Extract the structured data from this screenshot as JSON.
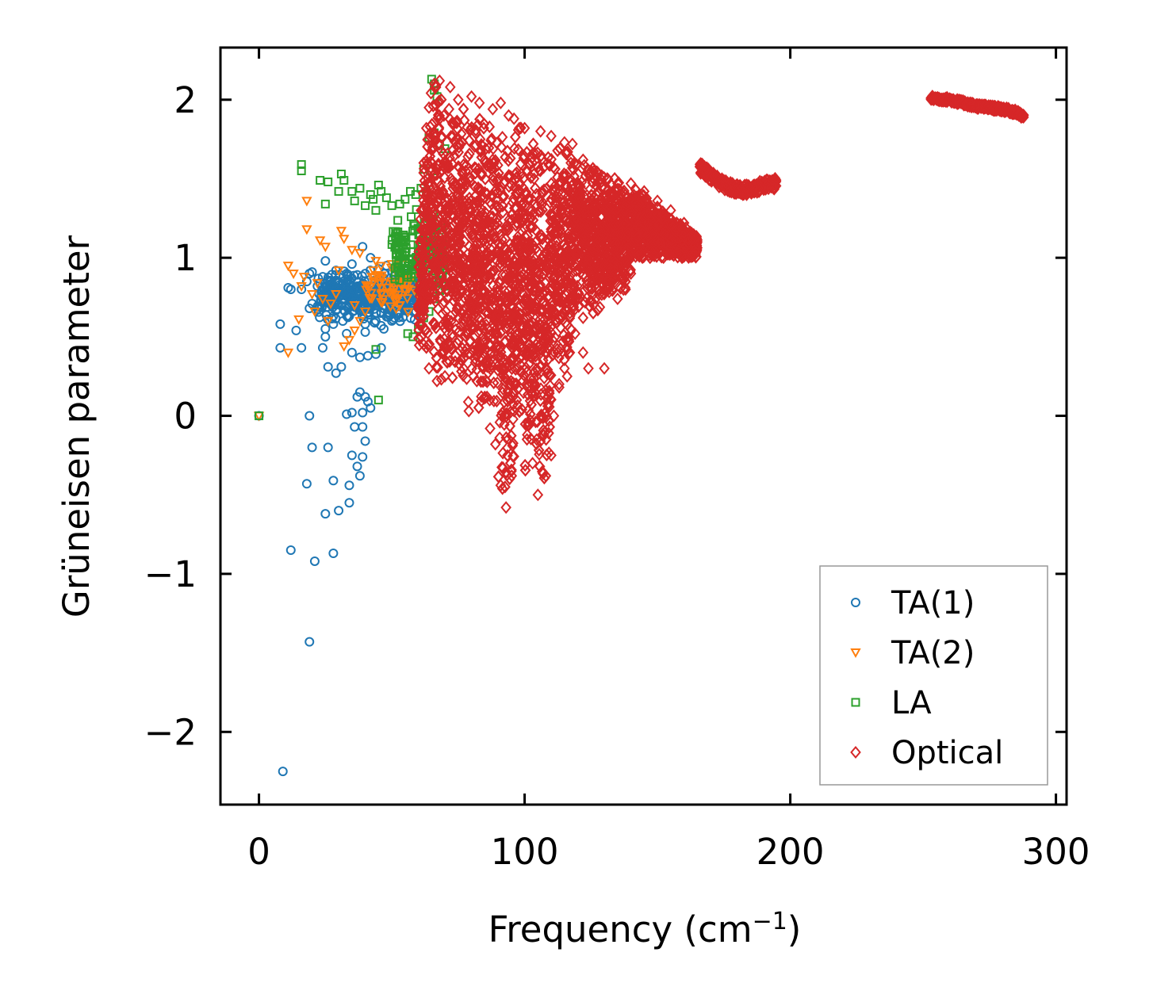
{
  "chart_data": {
    "type": "scatter",
    "title": "",
    "xlabel": "Frequency (cm",
    "xlabel_sup": "−1",
    "xlabel_close": ")",
    "ylabel": "Grüneisen parameter",
    "xlim": [
      -14.5,
      304
    ],
    "ylim": [
      -2.46,
      2.33
    ],
    "xticks": [
      0,
      100,
      200,
      300
    ],
    "xtick_labels": [
      "0",
      "100",
      "200",
      "300"
    ],
    "yticks": [
      -2,
      -1,
      0,
      1,
      2
    ],
    "ytick_labels": [
      "−2",
      "−1",
      "0",
      "1",
      "2"
    ],
    "grid": false,
    "legend_position": "lower-right",
    "series": [
      {
        "name": "TA(1)",
        "marker": "circle",
        "color": "#1f77b4",
        "points": [
          [
            0,
            0
          ],
          [
            9,
            -2.25
          ],
          [
            19,
            -1.43
          ],
          [
            21,
            -0.92
          ],
          [
            12,
            -0.85
          ],
          [
            28,
            -0.87
          ],
          [
            25,
            -0.62
          ],
          [
            30,
            -0.6
          ],
          [
            18,
            -0.43
          ],
          [
            28,
            -0.41
          ],
          [
            34,
            -0.55
          ],
          [
            20,
            -0.2
          ],
          [
            26,
            -0.2
          ],
          [
            34,
            -0.44
          ],
          [
            38,
            -0.38
          ],
          [
            35,
            -0.25
          ],
          [
            37,
            -0.32
          ],
          [
            39,
            -0.26
          ],
          [
            19,
            0.0
          ],
          [
            33,
            0.01
          ],
          [
            36,
            -0.07
          ],
          [
            39,
            -0.07
          ],
          [
            40,
            -0.16
          ],
          [
            35,
            0.02
          ],
          [
            39,
            0.02
          ],
          [
            37,
            0.12
          ],
          [
            40,
            0.12
          ],
          [
            41,
            0.09
          ],
          [
            38,
            0.15
          ],
          [
            42,
            0.05
          ],
          [
            26,
            0.31
          ],
          [
            29,
            0.27
          ],
          [
            31,
            0.31
          ],
          [
            35,
            0.4
          ],
          [
            38,
            0.37
          ],
          [
            41,
            0.38
          ],
          [
            44,
            0.39
          ],
          [
            46,
            0.43
          ],
          [
            8,
            0.43
          ],
          [
            16,
            0.43
          ],
          [
            24,
            0.43
          ],
          [
            25,
            0.5
          ],
          [
            33,
            0.52
          ],
          [
            40,
            0.53
          ],
          [
            8,
            0.58
          ],
          [
            14,
            0.54
          ],
          [
            25,
            0.55
          ],
          [
            28,
            0.58
          ],
          [
            19,
            0.68
          ],
          [
            20,
            0.71
          ],
          [
            28,
            0.63
          ],
          [
            34,
            0.63
          ],
          [
            40,
            0.58
          ],
          [
            46,
            0.57
          ],
          [
            11,
            0.81
          ],
          [
            12,
            0.8
          ],
          [
            16,
            0.8
          ],
          [
            18,
            0.85
          ],
          [
            19,
            0.9
          ],
          [
            20,
            0.91
          ],
          [
            24,
            0.88
          ],
          [
            25,
            0.98
          ],
          [
            30,
            0.84
          ],
          [
            35,
            0.96
          ],
          [
            39,
            1.07
          ],
          [
            42,
            1.0
          ],
          [
            45,
            0.93
          ],
          [
            48,
            0.85
          ],
          [
            53,
            0.88
          ],
          [
            56,
            0.9
          ],
          [
            58,
            0.8
          ],
          [
            60,
            0.75
          ],
          [
            55,
            0.7
          ],
          [
            50,
            0.6
          ],
          [
            47,
            0.55
          ],
          [
            52,
            0.65
          ],
          [
            44,
            0.6
          ],
          [
            22,
            0.82
          ],
          [
            27,
            0.85
          ],
          [
            31,
            0.78
          ],
          [
            36,
            0.72
          ],
          [
            41,
            0.68
          ],
          [
            44,
            0.75
          ],
          [
            37,
            0.82
          ],
          [
            33,
            0.9
          ],
          [
            29,
            0.92
          ],
          [
            49,
            0.72
          ],
          [
            54,
            0.78
          ],
          [
            46,
            0.65
          ],
          [
            42,
            0.82
          ],
          [
            38,
            0.78
          ],
          [
            34,
            0.86
          ],
          [
            30,
            0.8
          ],
          [
            40,
            0.9
          ],
          [
            48,
            0.95
          ]
        ],
        "cloud": {
          "x_range": [
            22,
            62
          ],
          "y_range": [
            0.56,
            0.96
          ],
          "count": 420
        }
      },
      {
        "name": "TA(2)",
        "marker": "triangle-down",
        "color": "#ff7f0e",
        "points": [
          [
            0,
            0
          ],
          [
            11,
            0.95
          ],
          [
            18,
            1.36
          ],
          [
            18,
            1.18
          ],
          [
            23,
            1.11
          ],
          [
            25,
            1.07
          ],
          [
            31,
            1.17
          ],
          [
            32,
            1.12
          ],
          [
            35,
            1.05
          ],
          [
            38,
            1.03
          ],
          [
            11,
            0.4
          ],
          [
            13,
            0.9
          ],
          [
            16,
            0.82
          ],
          [
            17,
            0.88
          ],
          [
            20,
            0.77
          ],
          [
            22,
            0.84
          ],
          [
            24,
            0.74
          ],
          [
            27,
            0.71
          ],
          [
            32,
            0.44
          ],
          [
            34,
            0.48
          ],
          [
            36,
            0.54
          ],
          [
            38,
            0.6
          ],
          [
            40,
            0.66
          ],
          [
            43,
            0.92
          ],
          [
            45,
            0.88
          ],
          [
            47,
            0.84
          ],
          [
            50,
            0.96
          ],
          [
            52,
            0.9
          ],
          [
            55,
            0.99
          ],
          [
            15,
            0.61
          ],
          [
            21,
            0.66
          ],
          [
            29,
            0.77
          ],
          [
            41,
            0.82
          ],
          [
            46,
            0.72
          ],
          [
            49,
            0.78
          ],
          [
            53,
            0.7
          ],
          [
            57,
            0.86
          ],
          [
            44,
            0.98
          ],
          [
            30,
            0.92
          ],
          [
            26,
            0.6
          ],
          [
            36,
            0.7
          ]
        ],
        "cloud": {
          "x_range": [
            40,
            62
          ],
          "y_range": [
            0.6,
            1.0
          ],
          "count": 60
        }
      },
      {
        "name": "LA",
        "marker": "square",
        "color": "#2ca02c",
        "points": [
          [
            0,
            0
          ],
          [
            16,
            1.59
          ],
          [
            16,
            1.55
          ],
          [
            23,
            1.49
          ],
          [
            26,
            1.48
          ],
          [
            31,
            1.53
          ],
          [
            32,
            1.49
          ],
          [
            30,
            1.42
          ],
          [
            35,
            1.42
          ],
          [
            38,
            1.44
          ],
          [
            36,
            1.36
          ],
          [
            40,
            1.33
          ],
          [
            43,
            1.37
          ],
          [
            45,
            1.46
          ],
          [
            46,
            1.42
          ],
          [
            48,
            1.38
          ],
          [
            44,
            1.3
          ],
          [
            50,
            1.33
          ],
          [
            53,
            1.34
          ],
          [
            55,
            1.37
          ],
          [
            57,
            1.42
          ],
          [
            59,
            1.4
          ],
          [
            61,
            1.44
          ],
          [
            63,
            1.42
          ],
          [
            65,
            2.13
          ],
          [
            66,
            2.1
          ],
          [
            66,
            2.06
          ],
          [
            67,
            2.02
          ],
          [
            64,
            1.76
          ],
          [
            66,
            1.79
          ],
          [
            68,
            1.72
          ],
          [
            70,
            1.69
          ],
          [
            62,
            1.56
          ],
          [
            65,
            1.55
          ],
          [
            44,
            0.42
          ],
          [
            45,
            0.1
          ],
          [
            56,
            0.52
          ],
          [
            58,
            0.5
          ],
          [
            60,
            0.55
          ],
          [
            62,
            0.62
          ],
          [
            64,
            0.66
          ],
          [
            66,
            0.74
          ],
          [
            68,
            0.8
          ],
          [
            70,
            0.82
          ],
          [
            25,
            1.34
          ],
          [
            42,
            1.4
          ],
          [
            60,
            0.95
          ],
          [
            67,
            0.96
          ]
        ],
        "cloud": {
          "x_range": [
            50,
            70
          ],
          "y_range": [
            0.7,
            1.35
          ],
          "count": 160
        }
      },
      {
        "name": "Optical",
        "marker": "diamond",
        "color": "#d62728",
        "points": [
          [
            66,
            2.1
          ],
          [
            68,
            2.12
          ],
          [
            72,
            2.08
          ],
          [
            75,
            2.0
          ],
          [
            80,
            2.02
          ],
          [
            83,
            1.98
          ],
          [
            88,
            1.94
          ],
          [
            91,
            1.98
          ],
          [
            94,
            1.9
          ],
          [
            96,
            1.88
          ],
          [
            98,
            1.82
          ],
          [
            100,
            1.82
          ],
          [
            106,
            1.8
          ],
          [
            110,
            1.77
          ],
          [
            115,
            1.73
          ],
          [
            118,
            1.72
          ],
          [
            122,
            1.62
          ],
          [
            125,
            1.55
          ],
          [
            129,
            1.52
          ],
          [
            135,
            1.47
          ],
          [
            140,
            1.47
          ],
          [
            145,
            1.42
          ],
          [
            150,
            1.36
          ],
          [
            155,
            1.3
          ],
          [
            160,
            1.22
          ],
          [
            163,
            1.12
          ],
          [
            160,
            1.06
          ],
          [
            150,
            1.1
          ],
          [
            140,
            0.9
          ],
          [
            138,
            0.8
          ],
          [
            135,
            0.74
          ],
          [
            130,
            0.8
          ],
          [
            128,
            0.92
          ],
          [
            125,
            0.72
          ],
          [
            122,
            0.62
          ],
          [
            119,
            0.52
          ],
          [
            117,
            0.4
          ],
          [
            115,
            0.3
          ],
          [
            113,
            0.2
          ],
          [
            111,
            0.0
          ],
          [
            110,
            -0.25
          ],
          [
            108,
            -0.38
          ],
          [
            105,
            -0.5
          ],
          [
            103,
            -0.3
          ],
          [
            101,
            -0.12
          ],
          [
            99,
            0.04
          ],
          [
            97,
            0.1
          ],
          [
            95,
            -0.35
          ],
          [
            93,
            -0.58
          ],
          [
            91,
            -0.44
          ],
          [
            89,
            -0.18
          ],
          [
            87,
            -0.08
          ],
          [
            85,
            0.12
          ],
          [
            82,
            0.22
          ],
          [
            79,
            0.03
          ],
          [
            77,
            0.3
          ],
          [
            74,
            0.38
          ],
          [
            72,
            0.44
          ],
          [
            70,
            0.25
          ],
          [
            67,
            0.22
          ],
          [
            64,
            0.3
          ],
          [
            62,
            0.45
          ],
          [
            60,
            0.7
          ],
          [
            60,
            1.0
          ],
          [
            61,
            1.3
          ],
          [
            62,
            1.6
          ],
          [
            63,
            1.82
          ],
          [
            64,
            1.95
          ],
          [
            124,
            0.3
          ],
          [
            130,
            0.3
          ],
          [
            122,
            0.4
          ],
          [
            116,
            0.25
          ],
          [
            113,
            0.18
          ]
        ],
        "cloud": {
          "x_range": [
            60,
            165
          ],
          "y_range": [
            -0.55,
            2.12
          ],
          "count": 5200
        },
        "bands": [
          {
            "x": [
              166,
              170,
              175,
              180,
              185,
              190,
              195
            ],
            "y": [
              1.57,
              1.52,
              1.46,
              1.43,
              1.43,
              1.46,
              1.47
            ],
            "spread": 0.07
          },
          {
            "x": [
              253,
              260,
              265,
              270,
              275,
              280,
              285,
              288
            ],
            "y": [
              2.01,
              2.0,
              1.98,
              1.96,
              1.95,
              1.94,
              1.92,
              1.89
            ],
            "spread": 0.03
          }
        ]
      }
    ]
  }
}
